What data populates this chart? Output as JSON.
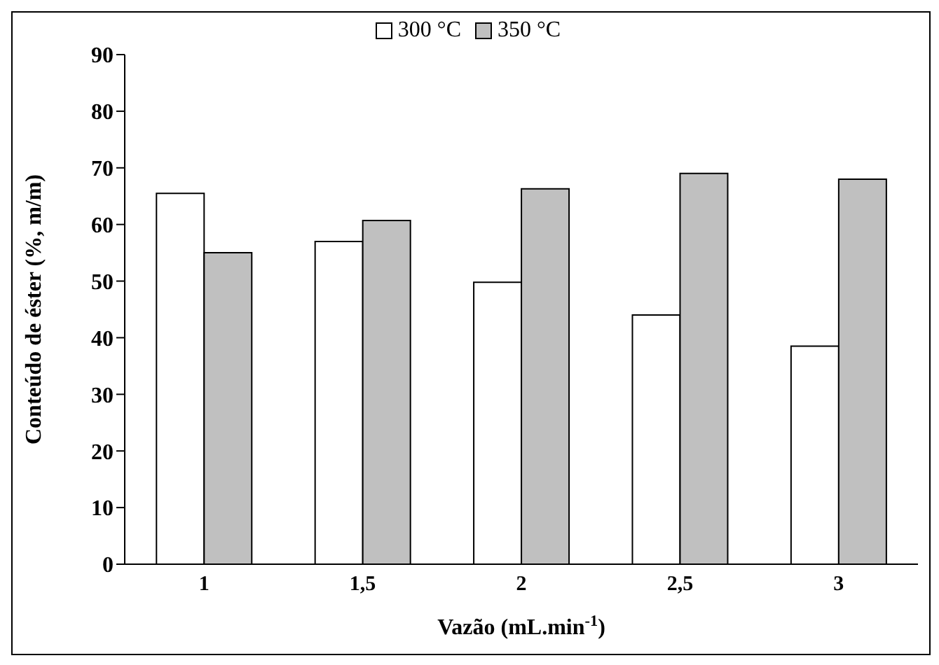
{
  "chart_data": {
    "type": "bar",
    "categories": [
      "1",
      "1,5",
      "2",
      "2,5",
      "3"
    ],
    "series": [
      {
        "name": "300 °C",
        "color": "#ffffff",
        "values": [
          65.5,
          57,
          49.8,
          44,
          38.5
        ]
      },
      {
        "name": "350 °C",
        "color": "#c0c0c0",
        "values": [
          55,
          60.7,
          66.3,
          69,
          68
        ]
      }
    ],
    "xlabel": "Vazão (mL.min$^{-1}$)",
    "ylabel": "Conteúdo de éster (%, m/m)",
    "ylim": [
      0,
      90
    ],
    "yticks": [
      0,
      10,
      20,
      30,
      40,
      50,
      60,
      70,
      80,
      90
    ],
    "legend": "top"
  }
}
